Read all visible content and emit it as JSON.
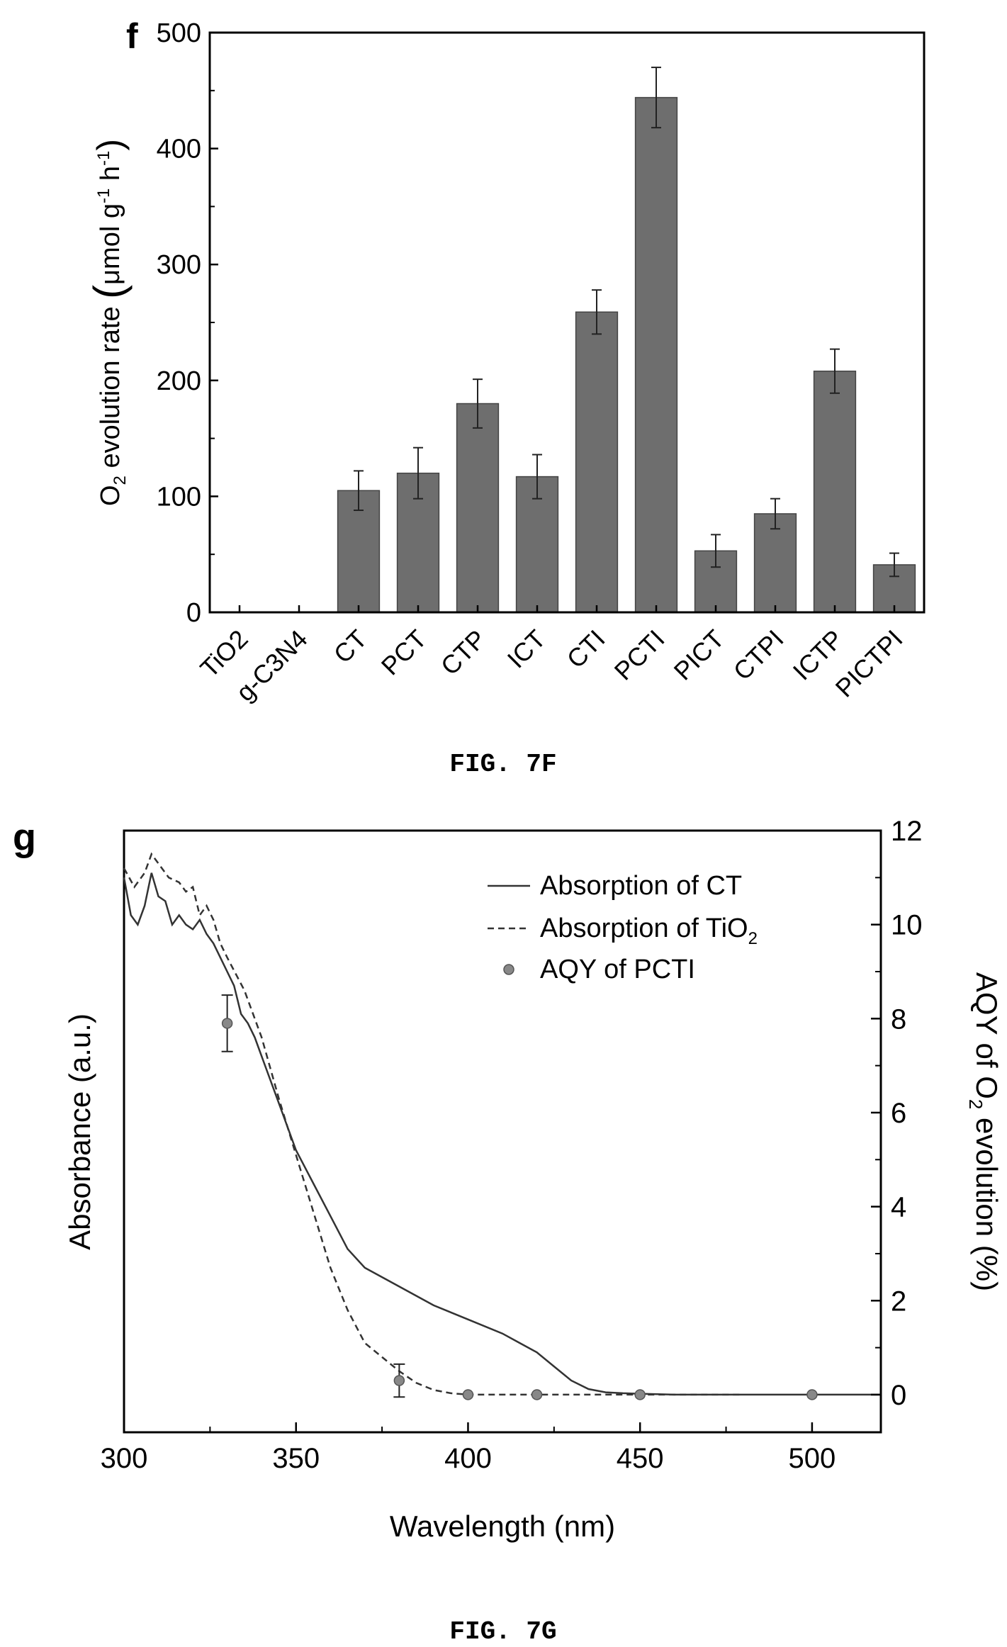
{
  "chart_data": [
    {
      "panel": "f",
      "type": "bar",
      "ylabel": "O2 evolution rate (μmol g-1 h-1)",
      "ylabel_parts": {
        "o": "O",
        "o_sub": "2",
        "mid": " evolution rate ",
        "unit_open": "μmol g",
        "g_sup": "-1",
        "h": " h",
        "h_sup": "-1",
        "close": ")"
      },
      "ylim": [
        0,
        500
      ],
      "yticks": [
        0,
        100,
        200,
        300,
        400,
        500
      ],
      "categories": [
        "TiO2",
        "g-C3N4",
        "CT",
        "PCT",
        "CTP",
        "ICT",
        "CTI",
        "PCTI",
        "PICT",
        "CTPI",
        "ICTP",
        "PICTPI"
      ],
      "values": [
        0,
        0,
        105,
        120,
        180,
        117,
        259,
        444,
        53,
        85,
        208,
        41
      ],
      "errors": [
        0,
        0,
        17,
        22,
        21,
        19,
        19,
        26,
        14,
        13,
        19,
        10
      ],
      "bar_color": "#6e6e6e",
      "grid": false,
      "caption": "FIG. 7F"
    },
    {
      "panel": "g",
      "type": "line",
      "xlabel": "Wavelength (nm)",
      "ylabel_left": "Absorbance (a.u.)",
      "ylabel_right": "AQY of O2 evolution (%)",
      "ylabel_right_parts": {
        "a": "AQY of O",
        "sub": "2",
        "b": " evolution (%)"
      },
      "xlim": [
        300,
        520
      ],
      "xticks": [
        300,
        350,
        400,
        450,
        500
      ],
      "ylim_right": [
        -0.8,
        12
      ],
      "yticks_right": [
        0,
        2,
        4,
        6,
        8,
        10,
        12
      ],
      "legend_position": "top-right",
      "grid": false,
      "series": [
        {
          "name": "Absorption of CT",
          "style": "solid",
          "axis": "right-scale",
          "x": [
            300,
            302,
            304,
            306,
            308,
            310,
            312,
            314,
            316,
            318,
            320,
            322,
            324,
            326,
            328,
            330,
            332,
            334,
            336,
            338,
            340,
            345,
            350,
            355,
            360,
            365,
            370,
            380,
            390,
            400,
            410,
            415,
            420,
            425,
            430,
            435,
            440,
            445,
            450,
            460,
            470,
            480,
            490,
            500,
            510,
            520
          ],
          "y": [
            11.0,
            10.2,
            10.0,
            10.4,
            11.1,
            10.6,
            10.5,
            10.0,
            10.2,
            10.0,
            9.9,
            10.1,
            9.8,
            9.6,
            9.3,
            9.0,
            8.7,
            8.1,
            7.9,
            7.6,
            7.2,
            6.2,
            5.2,
            4.5,
            3.8,
            3.1,
            2.7,
            2.3,
            1.9,
            1.6,
            1.3,
            1.1,
            0.9,
            0.6,
            0.3,
            0.12,
            0.05,
            0.03,
            0.02,
            0.0,
            0.0,
            0.0,
            0.0,
            0.0,
            0.0,
            0.0
          ]
        },
        {
          "name": "Absorption of TiO2",
          "name_parts": {
            "a": "Absorption of TiO",
            "sub": "2"
          },
          "style": "dashed",
          "axis": "right-scale",
          "x": [
            300,
            303,
            306,
            308,
            310,
            313,
            316,
            318,
            320,
            322,
            324,
            326,
            328,
            330,
            335,
            340,
            345,
            350,
            355,
            360,
            365,
            370,
            375,
            380,
            385,
            390,
            395,
            400,
            410,
            420,
            430,
            440,
            450,
            460,
            470,
            480
          ],
          "y": [
            11.2,
            10.8,
            11.1,
            11.5,
            11.3,
            11.0,
            10.9,
            10.7,
            10.8,
            10.2,
            10.4,
            10.1,
            9.6,
            9.3,
            8.6,
            7.6,
            6.3,
            5.1,
            3.9,
            2.7,
            1.8,
            1.1,
            0.8,
            0.5,
            0.25,
            0.1,
            0.03,
            0.0,
            0.0,
            0.0,
            0.0,
            0.0,
            0.0,
            0.0,
            0.0,
            0.0
          ]
        },
        {
          "name": "AQY of PCTI",
          "style": "marker",
          "axis": "right",
          "x": [
            330,
            380,
            400,
            420,
            450,
            500
          ],
          "y": [
            7.9,
            0.3,
            0.0,
            0.0,
            0.0,
            0.0
          ],
          "errors": [
            0.6,
            0.35,
            0,
            0,
            0,
            0
          ]
        }
      ],
      "caption": "FIG. 7G"
    }
  ]
}
